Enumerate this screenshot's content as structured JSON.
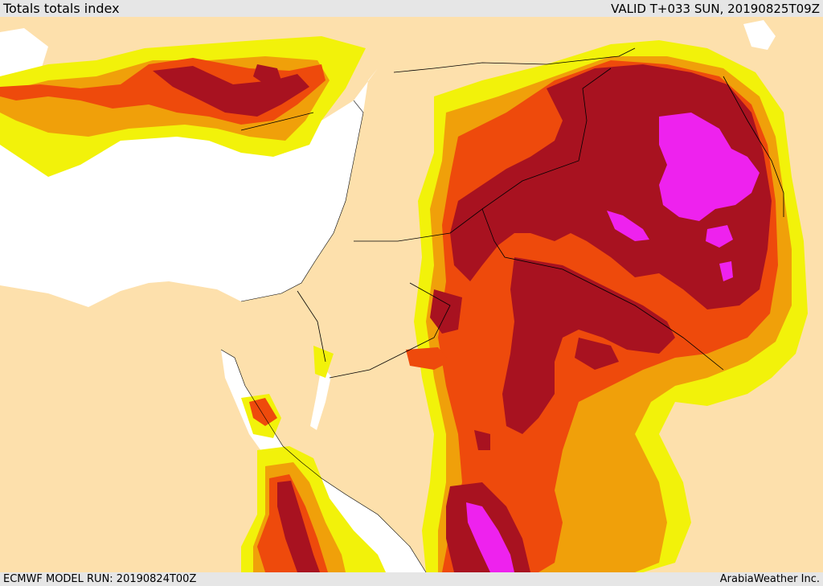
{
  "header": {
    "title": "Totals totals index",
    "valid": "VALID T+033 SUN, 20190825T09Z"
  },
  "footer": {
    "model_run": "ECMWF MODEL RUN: 20190824T00Z",
    "credit": "ArabiaWeather Inc."
  },
  "colors": {
    "land": "#fde0ac",
    "sea": "#ffffff",
    "level_1": "#f2f20a",
    "level_2": "#f0a00a",
    "level_3": "#ee4a0c",
    "level_4": "#a81220",
    "level_5": "#ee22ee"
  }
}
